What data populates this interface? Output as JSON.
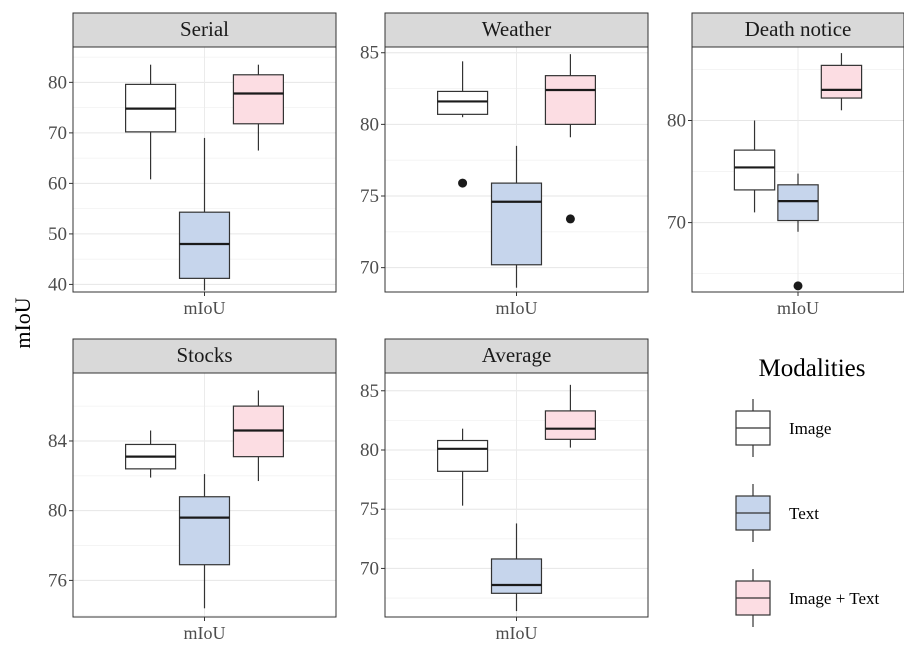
{
  "chart_data": {
    "type": "boxplot",
    "ylabel": "mIoU",
    "legend": {
      "title": "Modalities",
      "position": "right",
      "entries": [
        {
          "label": "Image",
          "color": "#ffffff"
        },
        {
          "label": "Text",
          "color": "#c6d5ec"
        },
        {
          "label": "Image + Text",
          "color": "#fcdde3"
        }
      ]
    },
    "grid": true,
    "facets": [
      {
        "title": "Serial",
        "category": "mIoU",
        "ylim": [
          38.5,
          87
        ],
        "yticks": [
          40,
          50,
          60,
          70,
          80
        ],
        "boxes": [
          {
            "series": "Image",
            "min": 60.8,
            "q1": 70.2,
            "median": 74.8,
            "q3": 79.6,
            "max": 83.5,
            "outliers": []
          },
          {
            "series": "Text",
            "min": 38.8,
            "q1": 41.2,
            "median": 48.0,
            "q3": 54.3,
            "max": 69.0,
            "outliers": []
          },
          {
            "series": "Image + Text",
            "min": 66.5,
            "q1": 71.8,
            "median": 77.8,
            "q3": 81.5,
            "max": 83.5,
            "outliers": []
          }
        ]
      },
      {
        "title": "Weather",
        "category": "mIoU",
        "ylim": [
          68.3,
          85.4
        ],
        "yticks": [
          70,
          75,
          80,
          85
        ],
        "boxes": [
          {
            "series": "Image",
            "min": 80.5,
            "q1": 80.7,
            "median": 81.6,
            "q3": 82.3,
            "max": 84.4,
            "outliers": [
              75.9
            ]
          },
          {
            "series": "Text",
            "min": 68.6,
            "q1": 70.2,
            "median": 74.6,
            "q3": 75.9,
            "max": 78.5,
            "outliers": []
          },
          {
            "series": "Image + Text",
            "min": 79.1,
            "q1": 80.0,
            "median": 82.4,
            "q3": 83.4,
            "max": 84.9,
            "outliers": [
              73.4
            ]
          }
        ]
      },
      {
        "title": "Death notice",
        "category": "mIoU",
        "ylim": [
          63.2,
          87.2
        ],
        "yticks": [
          70,
          80
        ],
        "boxes": [
          {
            "series": "Image",
            "min": 71.0,
            "q1": 73.2,
            "median": 75.4,
            "q3": 77.1,
            "max": 80.0,
            "outliers": []
          },
          {
            "series": "Text",
            "min": 69.1,
            "q1": 70.2,
            "median": 72.1,
            "q3": 73.7,
            "max": 74.8,
            "outliers": [
              63.8
            ]
          },
          {
            "series": "Image + Text",
            "min": 81.0,
            "q1": 82.2,
            "median": 83.0,
            "q3": 85.4,
            "max": 86.6,
            "outliers": []
          }
        ]
      },
      {
        "title": "Stocks",
        "category": "mIoU",
        "ylim": [
          73.9,
          87.9
        ],
        "yticks": [
          76,
          80,
          84
        ],
        "boxes": [
          {
            "series": "Image",
            "min": 81.9,
            "q1": 82.4,
            "median": 83.1,
            "q3": 83.8,
            "max": 84.6,
            "outliers": []
          },
          {
            "series": "Text",
            "min": 74.4,
            "q1": 76.9,
            "median": 79.6,
            "q3": 80.8,
            "max": 82.1,
            "outliers": []
          },
          {
            "series": "Image + Text",
            "min": 81.7,
            "q1": 83.1,
            "median": 84.6,
            "q3": 86.0,
            "max": 86.9,
            "outliers": []
          }
        ]
      },
      {
        "title": "Average",
        "category": "mIoU",
        "ylim": [
          65.9,
          86.5
        ],
        "yticks": [
          70,
          75,
          80,
          85
        ],
        "boxes": [
          {
            "series": "Image",
            "min": 75.3,
            "q1": 78.2,
            "median": 80.1,
            "q3": 80.8,
            "max": 81.8,
            "outliers": []
          },
          {
            "series": "Text",
            "min": 66.4,
            "q1": 67.9,
            "median": 68.6,
            "q3": 70.8,
            "max": 73.8,
            "outliers": []
          },
          {
            "series": "Image + Text",
            "min": 80.2,
            "q1": 80.9,
            "median": 81.8,
            "q3": 83.3,
            "max": 85.5,
            "outliers": []
          }
        ]
      }
    ]
  }
}
